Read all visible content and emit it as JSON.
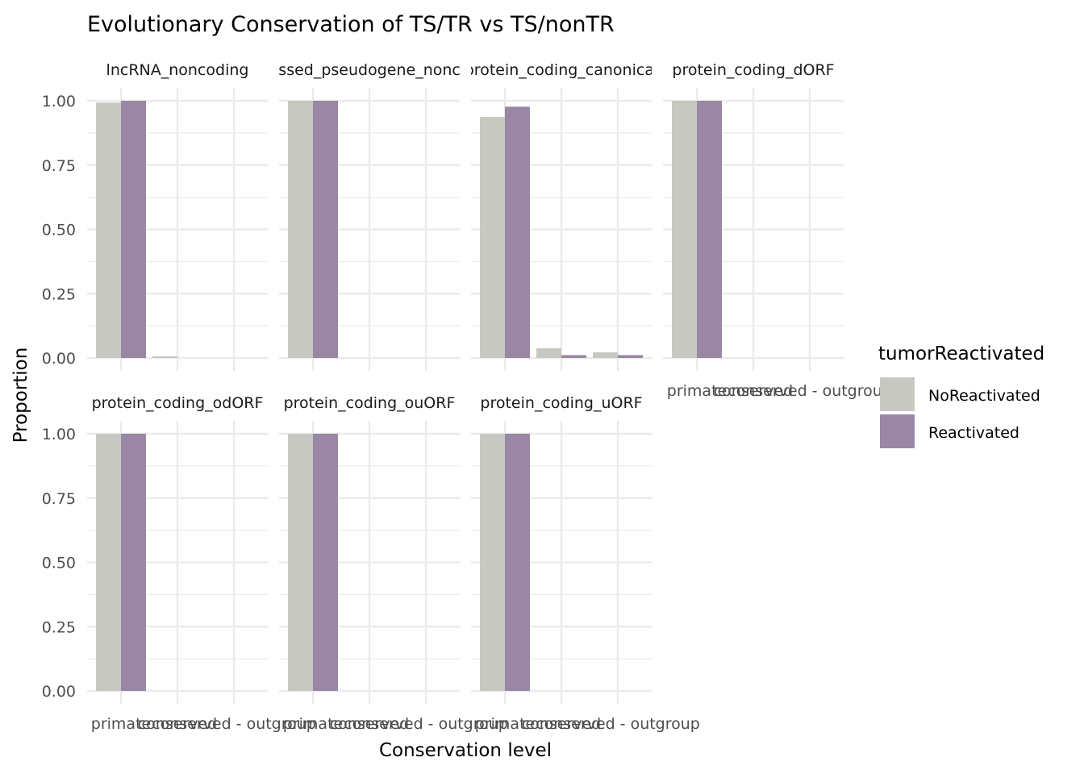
{
  "title": "Evolutionary Conservation of TS/TR vs TS/nonTR",
  "colors": {
    "NoReactivated": "#c8c8c3",
    "Reactivated": "#9a87a4",
    "grid": "#ebebeb"
  },
  "legend": {
    "title": "tumorReactivated",
    "items": [
      {
        "label": "NoReactivated",
        "color": "#c8c8c3"
      },
      {
        "label": "Reactivated",
        "color": "#9a87a4"
      }
    ]
  },
  "chart_data": {
    "type": "bar",
    "layout": "facet_wrap",
    "title": "Evolutionary Conservation of TS/TR vs TS/nonTR",
    "xlabel": "Conservation level",
    "ylabel": "Proportion",
    "ylim": [
      0,
      1
    ],
    "yticks": [
      "0.00",
      "0.25",
      "0.50",
      "0.75",
      "1.00"
    ],
    "categories": [
      "primate",
      "conserved",
      "conserved - outgroup"
    ],
    "x_tick_labels": [
      "primate",
      "conserved",
      "conserved - outgroup"
    ],
    "grid": true,
    "legend_position": "right",
    "series_names": [
      "NoReactivated",
      "Reactivated"
    ],
    "facets": [
      {
        "label": "lncRNA_noncoding",
        "series": [
          {
            "name": "NoReactivated",
            "values": [
              0.993,
              0.007,
              0
            ]
          },
          {
            "name": "Reactivated",
            "values": [
              1.0,
              0,
              0
            ]
          }
        ]
      },
      {
        "label": "processed_pseudogene_noncoding",
        "series": [
          {
            "name": "NoReactivated",
            "values": [
              1.0,
              0,
              0
            ]
          },
          {
            "name": "Reactivated",
            "values": [
              1.0,
              0,
              0
            ]
          }
        ]
      },
      {
        "label": "protein_coding_canonical",
        "series": [
          {
            "name": "NoReactivated",
            "values": [
              0.937,
              0.038,
              0.022
            ]
          },
          {
            "name": "Reactivated",
            "values": [
              0.977,
              0.011,
              0.011
            ]
          }
        ]
      },
      {
        "label": "protein_coding_dORF",
        "series": [
          {
            "name": "NoReactivated",
            "values": [
              1.0,
              0,
              0
            ]
          },
          {
            "name": "Reactivated",
            "values": [
              1.0,
              0,
              0
            ]
          }
        ]
      },
      {
        "label": "protein_coding_odORF",
        "series": [
          {
            "name": "NoReactivated",
            "values": [
              1.0,
              0,
              0
            ]
          },
          {
            "name": "Reactivated",
            "values": [
              1.0,
              0,
              0
            ]
          }
        ]
      },
      {
        "label": "protein_coding_ouORF",
        "series": [
          {
            "name": "NoReactivated",
            "values": [
              1.0,
              0,
              0
            ]
          },
          {
            "name": "Reactivated",
            "values": [
              1.0,
              0,
              0
            ]
          }
        ]
      },
      {
        "label": "protein_coding_uORF",
        "series": [
          {
            "name": "NoReactivated",
            "values": [
              1.0,
              0,
              0
            ]
          },
          {
            "name": "Reactivated",
            "values": [
              1.0,
              0,
              0
            ]
          }
        ]
      }
    ]
  }
}
